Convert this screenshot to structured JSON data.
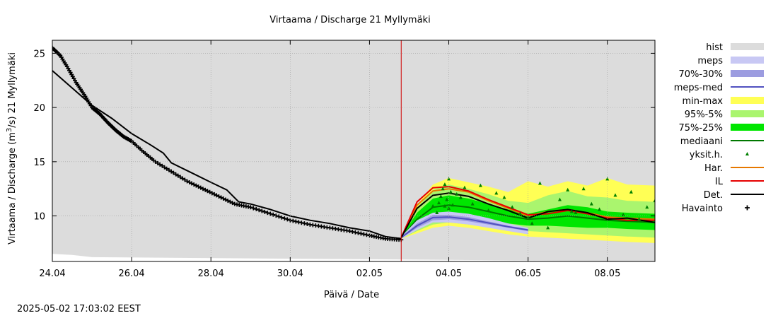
{
  "chart_data": {
    "type": "line",
    "title": "Virtaama / Discharge  21 Myllymäki",
    "xlabel": "Päivä / Date",
    "ylabel": "Virtaama / Discharge (m³/s)  21 Myllymäki",
    "ylabel_parts": {
      "prefix": "Virtaama / Discharge (m",
      "superscript": "3",
      "suffix": "/s)  21 Myllymäki"
    },
    "x_range_days": [
      0,
      15.2
    ],
    "x_ticks": [
      {
        "day": 0,
        "label": "24.04"
      },
      {
        "day": 2,
        "label": "26.04"
      },
      {
        "day": 4,
        "label": "28.04"
      },
      {
        "day": 6,
        "label": "30.04"
      },
      {
        "day": 8,
        "label": "02.05"
      },
      {
        "day": 10,
        "label": "04.05"
      },
      {
        "day": 12,
        "label": "06.05"
      },
      {
        "day": 14,
        "label": "08.05"
      }
    ],
    "ylim": [
      5.8,
      26.2
    ],
    "y_ticks": [
      10,
      15,
      20,
      25
    ],
    "grid": true,
    "forecast_start_day": 8.8,
    "legend_position": "right",
    "legend": [
      {
        "label": "hist",
        "kind": "box",
        "color": "#dcdcdc"
      },
      {
        "label": "meps",
        "kind": "box",
        "color": "#c8c8f4"
      },
      {
        "label": "70%-30%",
        "kind": "box",
        "color": "#9c9ce0"
      },
      {
        "label": "meps-med",
        "kind": "line",
        "color": "#5050c0"
      },
      {
        "label": "min-max",
        "kind": "box",
        "color": "#ffff55"
      },
      {
        "label": "95%-5%",
        "kind": "box",
        "color": "#aaf56e"
      },
      {
        "label": "75%-25%",
        "kind": "box",
        "color": "#00e600"
      },
      {
        "label": "mediaani",
        "kind": "line",
        "color": "#007800"
      },
      {
        "label": "yksit.h.",
        "kind": "triangle",
        "color": "#008000"
      },
      {
        "label": "Har.",
        "kind": "line",
        "color": "#e67800"
      },
      {
        "label": "IL",
        "kind": "line",
        "color": "#e60000"
      },
      {
        "label": "Det.",
        "kind": "line",
        "color": "#000000"
      },
      {
        "label": "Havainto",
        "kind": "plus",
        "color": "#000000"
      }
    ],
    "series": [
      {
        "name": "hist",
        "kind": "area",
        "color": "#dcdcdc",
        "x": [
          0,
          0.5,
          1.0,
          15.2
        ],
        "y_low": [
          6.5,
          6.4,
          6.2,
          5.8
        ],
        "y_high": [
          26.2,
          26.2,
          26.2,
          26.2
        ]
      },
      {
        "name": "Havainto",
        "kind": "observed",
        "color": "#000000",
        "x": [
          0,
          0.2,
          0.4,
          0.6,
          0.8,
          1.0,
          1.2,
          1.4,
          1.6,
          1.8,
          2.0,
          2.3,
          2.6,
          3.0,
          3.4,
          3.8,
          4.2,
          4.6,
          5.0,
          5.5,
          6.0,
          6.5,
          7.0,
          7.5,
          8.0,
          8.4,
          8.8
        ],
        "y": [
          25.5,
          24.8,
          23.6,
          22.3,
          21.2,
          20.0,
          19.4,
          18.6,
          17.9,
          17.3,
          16.9,
          15.9,
          15.0,
          14.1,
          13.2,
          12.5,
          11.8,
          11.1,
          10.8,
          10.2,
          9.6,
          9.2,
          8.9,
          8.6,
          8.2,
          7.9,
          7.8
        ]
      },
      {
        "name": "Det.",
        "kind": "line",
        "color": "#000000",
        "x": [
          0,
          0.5,
          1.0,
          1.5,
          2.0,
          2.5,
          2.8,
          3.0,
          3.5,
          4.0,
          4.4,
          4.7,
          5.0,
          5.5,
          6.0,
          6.5,
          7.0,
          7.5,
          8.0,
          8.4,
          8.8
        ],
        "y": [
          23.4,
          21.8,
          20.2,
          19.0,
          17.6,
          16.5,
          15.8,
          14.9,
          14.0,
          13.1,
          12.4,
          11.3,
          11.1,
          10.6,
          10.0,
          9.6,
          9.3,
          8.9,
          8.6,
          8.1,
          7.9
        ]
      },
      {
        "name": "min-max",
        "kind": "band",
        "color": "#ffff55",
        "x": [
          8.8,
          9.2,
          9.6,
          10.0,
          10.5,
          11.0,
          11.5,
          12.0,
          12.5,
          13.0,
          13.5,
          14.0,
          14.5,
          15.2
        ],
        "y_low": [
          7.9,
          8.4,
          8.9,
          9.1,
          8.9,
          8.6,
          8.3,
          8.1,
          8.0,
          7.9,
          7.8,
          7.7,
          7.6,
          7.5
        ],
        "y_high": [
          8.1,
          11.0,
          12.9,
          13.5,
          13.1,
          12.7,
          12.2,
          13.2,
          12.7,
          13.2,
          12.8,
          13.5,
          12.9,
          12.8
        ]
      },
      {
        "name": "95%-5%",
        "kind": "band",
        "color": "#aaf56e",
        "x": [
          8.8,
          9.2,
          9.6,
          10.0,
          10.5,
          11.0,
          11.5,
          12.0,
          12.5,
          13.0,
          13.5,
          14.0,
          14.5,
          15.2
        ],
        "y_low": [
          7.9,
          8.6,
          9.2,
          9.4,
          9.2,
          9.0,
          8.8,
          8.6,
          8.5,
          8.4,
          8.3,
          8.2,
          8.1,
          8.0
        ],
        "y_high": [
          8.1,
          10.8,
          12.4,
          12.9,
          12.5,
          12.0,
          11.4,
          11.2,
          11.9,
          12.3,
          11.8,
          11.7,
          11.4,
          11.3
        ]
      },
      {
        "name": "75%-25%",
        "kind": "band",
        "color": "#00e600",
        "x": [
          8.8,
          9.2,
          9.6,
          10.0,
          10.5,
          11.0,
          11.5,
          12.0,
          12.5,
          13.0,
          13.5,
          14.0,
          14.5,
          15.2
        ],
        "y_low": [
          7.9,
          9.0,
          10.0,
          10.2,
          9.9,
          9.6,
          9.3,
          9.1,
          9.1,
          9.0,
          8.9,
          8.9,
          8.8,
          8.7
        ],
        "y_high": [
          8.1,
          10.3,
          11.6,
          11.9,
          11.6,
          11.1,
          10.6,
          10.2,
          10.6,
          11.0,
          10.8,
          10.4,
          10.3,
          10.2
        ]
      },
      {
        "name": "mediaani",
        "kind": "line",
        "color": "#007800",
        "x": [
          8.8,
          9.2,
          9.6,
          10.0,
          10.5,
          11.0,
          11.5,
          12.0,
          12.5,
          13.0,
          13.5,
          14.0,
          14.5,
          15.2
        ],
        "y": [
          8.0,
          9.7,
          10.8,
          11.0,
          10.8,
          10.4,
          10.0,
          9.7,
          9.8,
          10.0,
          9.8,
          9.6,
          9.5,
          9.4
        ]
      },
      {
        "name": "meps",
        "kind": "band",
        "color": "#c8c8f4",
        "x": [
          8.8,
          9.2,
          9.6,
          10.0,
          10.5,
          11.0,
          11.5,
          12.0
        ],
        "y_low": [
          7.9,
          8.7,
          9.4,
          9.4,
          9.2,
          8.9,
          8.6,
          8.3
        ],
        "y_high": [
          8.1,
          9.6,
          10.3,
          10.4,
          10.2,
          9.8,
          9.3,
          8.9
        ]
      },
      {
        "name": "70%-30%",
        "kind": "band",
        "color": "#9c9ce0",
        "x": [
          8.8,
          9.2,
          9.6,
          10.0,
          10.5,
          11.0,
          11.5,
          12.0
        ],
        "y_low": [
          7.95,
          8.9,
          9.6,
          9.7,
          9.5,
          9.2,
          8.9,
          8.6
        ],
        "y_high": [
          8.05,
          9.3,
          10.1,
          10.1,
          9.9,
          9.5,
          9.1,
          8.8
        ]
      },
      {
        "name": "meps-med",
        "kind": "line",
        "color": "#5050c0",
        "x": [
          8.8,
          9.2,
          9.6,
          10.0,
          10.5,
          11.0,
          11.5,
          12.0
        ],
        "y": [
          8.0,
          9.1,
          9.85,
          9.9,
          9.7,
          9.35,
          9.0,
          8.7
        ]
      },
      {
        "name": "Har.",
        "kind": "line",
        "color": "#e67800",
        "x": [
          8.8,
          9.2,
          9.6,
          10.0,
          10.5,
          11.0,
          11.5,
          12.0,
          12.5,
          13.0,
          13.5,
          14.0,
          14.5,
          15.2
        ],
        "y": [
          8.0,
          11.0,
          12.3,
          12.5,
          12.2,
          11.4,
          10.7,
          10.0,
          10.4,
          10.6,
          10.3,
          9.9,
          9.8,
          9.7
        ]
      },
      {
        "name": "IL",
        "kind": "line",
        "color": "#e60000",
        "x": [
          8.8,
          9.2,
          9.6,
          10.0,
          10.5,
          11.0,
          11.5,
          12.0,
          12.5,
          13.0,
          13.5,
          14.0,
          14.5,
          15.2
        ],
        "y": [
          8.0,
          11.3,
          12.6,
          12.7,
          12.3,
          11.5,
          10.8,
          10.1,
          10.2,
          10.5,
          10.2,
          9.8,
          9.6,
          9.6
        ]
      },
      {
        "name": "Det.",
        "kind": "line",
        "color": "#000000",
        "x": [
          8.8,
          9.2,
          9.6,
          10.0,
          10.5,
          11.0,
          11.5,
          12.0,
          12.5,
          13.0,
          13.5,
          14.0,
          14.5,
          15.2
        ],
        "y": [
          8.0,
          10.7,
          11.9,
          12.1,
          11.8,
          11.1,
          10.5,
          9.8,
          10.4,
          10.6,
          10.3,
          9.7,
          9.8,
          9.4
        ]
      },
      {
        "name": "yksit.h.",
        "kind": "scatter",
        "color": "#008000",
        "x": [
          9.75,
          9.8,
          9.85,
          9.9,
          9.95,
          10.0,
          10.05,
          10.1,
          9.9,
          10.0,
          9.7,
          10.2,
          10.4,
          10.6,
          10.8,
          11.0,
          11.2,
          11.4,
          11.6,
          11.8,
          12.0,
          12.3,
          12.5,
          12.8,
          13.0,
          13.2,
          13.4,
          13.6,
          13.8,
          14.0,
          14.2,
          14.4,
          14.6,
          14.8,
          15.0,
          15.2,
          9.6,
          10.3,
          12.1,
          13.1
        ],
        "y": [
          11.2,
          11.8,
          12.5,
          10.9,
          11.5,
          13.4,
          12.2,
          11.0,
          12.9,
          10.7,
          10.3,
          12.0,
          12.6,
          11.1,
          12.8,
          10.5,
          12.1,
          11.7,
          10.8,
          10.2,
          9.9,
          13.0,
          8.9,
          11.5,
          12.4,
          10.3,
          12.5,
          11.1,
          10.6,
          13.4,
          11.9,
          10.1,
          12.2,
          9.7,
          10.8,
          11.4,
          10.9,
          11.7,
          9.3,
          10.4
        ]
      }
    ]
  },
  "footer": {
    "timestamp": "2025-05-02 17:03:02 EEST"
  }
}
